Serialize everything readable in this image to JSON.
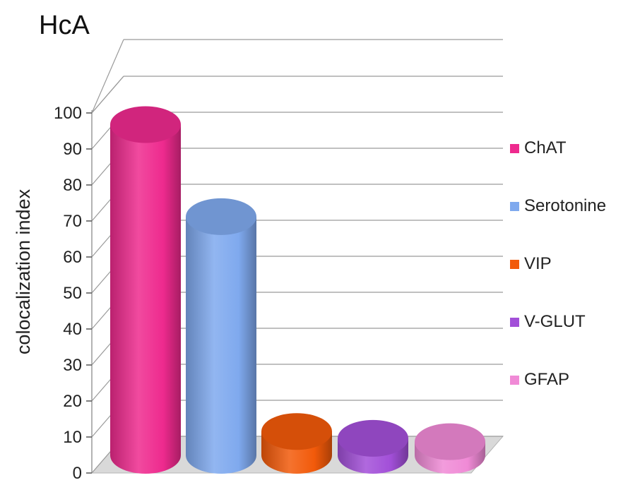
{
  "chart_data": {
    "type": "bar",
    "style": "3d-cylinder",
    "title": "HcA",
    "ylabel": "colocalization index",
    "xlabel": "",
    "ylim": [
      0,
      100
    ],
    "yticks": [
      0,
      10,
      20,
      30,
      40,
      50,
      60,
      70,
      80,
      90,
      100
    ],
    "grid": true,
    "legend_position": "right",
    "series": [
      {
        "name": "ChAT",
        "value": 97,
        "color": "#ee2a8e"
      },
      {
        "name": "Serotonine",
        "value": 70,
        "color": "#7fa9ee"
      },
      {
        "name": "VIP",
        "value": 7,
        "color": "#f25a0a"
      },
      {
        "name": "V-GLUT",
        "value": 5,
        "color": "#a24fd8"
      },
      {
        "name": "GFAP",
        "value": 4,
        "color": "#f08ad6"
      }
    ]
  }
}
